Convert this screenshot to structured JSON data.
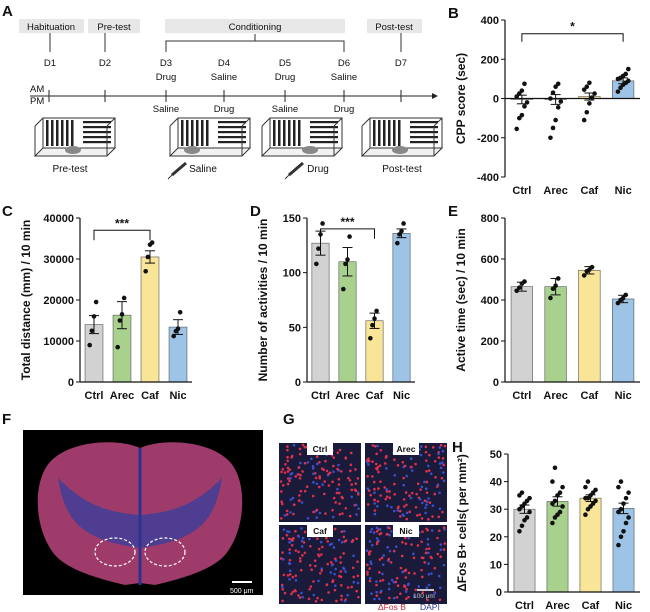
{
  "panels": {
    "A": "A",
    "B": "B",
    "C": "C",
    "D": "D",
    "E": "E",
    "F": "F",
    "G": "G",
    "H": "H"
  },
  "colors": {
    "Ctrl": "#d2d2d2",
    "Arec": "#a9d18e",
    "Caf": "#f8e598",
    "Nic": "#9dc3e6"
  },
  "schematic": {
    "phases": {
      "habituation": "Habituation",
      "pretest": "Pre-test",
      "conditioning": "Conditioning",
      "posttest": "Post-test"
    },
    "days": [
      "D1",
      "D2",
      "D3",
      "D4",
      "D5",
      "D6",
      "D7"
    ],
    "am_label": "AM",
    "pm_label": "PM",
    "am_treat": [
      "Drug",
      "Saline",
      "Drug",
      "Saline"
    ],
    "pm_treat": [
      "Saline",
      "Drug",
      "Saline",
      "Drug"
    ],
    "box_labels": {
      "pretest": "Pre-test",
      "saline": "Saline",
      "drug": "Drug",
      "posttest": "Post-test"
    }
  },
  "microscopy": {
    "F_scale": "500 μm",
    "G_labels": [
      "Ctrl",
      "Arec",
      "Caf",
      "Nic"
    ],
    "G_scale": "100 μm",
    "G_legend_fos": "ΔFos B",
    "G_legend_dapi": "DAPI"
  },
  "chart_data": [
    {
      "panel": "B",
      "type": "bar",
      "categories": [
        "Ctrl",
        "Arec",
        "Caf",
        "Nic"
      ],
      "values": [
        -5,
        -5,
        10,
        90
      ],
      "errors": [
        22,
        25,
        18,
        15
      ],
      "points": [
        [
          -155,
          -100,
          -85,
          -40,
          -20,
          10,
          25,
          40,
          75
        ],
        [
          -200,
          -150,
          -110,
          -45,
          -15,
          0,
          30,
          60,
          75
        ],
        [
          -110,
          -70,
          -25,
          5,
          25,
          45,
          60,
          80
        ],
        [
          35,
          55,
          70,
          80,
          90,
          100,
          105,
          115,
          125,
          150
        ]
      ],
      "ylabel": "CPP score (sec)",
      "ylim": [
        -400,
        400
      ],
      "yticks": [
        -400,
        -200,
        0,
        200,
        400
      ],
      "significance": {
        "from": "Ctrl",
        "to": "Nic",
        "label": "*"
      }
    },
    {
      "panel": "C",
      "type": "bar",
      "categories": [
        "Ctrl",
        "Arec",
        "Caf",
        "Nic"
      ],
      "values": [
        14000,
        16300,
        30500,
        13400
      ],
      "errors": [
        2200,
        3300,
        1500,
        1800
      ],
      "points": [
        [
          9000,
          12500,
          16000,
          19500
        ],
        [
          8500,
          15000,
          16500,
          20500
        ],
        [
          27000,
          30500,
          33500,
          34000
        ],
        [
          11200,
          12400,
          13000,
          17000
        ]
      ],
      "ylabel": "Total distance (mm) / 10 min",
      "ylim": [
        0,
        40000
      ],
      "yticks": [
        0,
        10000,
        20000,
        30000,
        40000
      ],
      "significance": {
        "from": "Ctrl",
        "to": "Caf",
        "label": "***"
      }
    },
    {
      "panel": "D",
      "type": "bar",
      "categories": [
        "Ctrl",
        "Arec",
        "Caf",
        "Nic"
      ],
      "values": [
        127,
        110,
        56,
        136
      ],
      "errors": [
        11,
        13,
        7,
        4
      ],
      "points": [
        [
          108,
          122,
          135,
          145
        ],
        [
          85,
          108,
          112,
          133
        ],
        [
          40,
          52,
          58,
          65
        ],
        [
          127,
          135,
          138,
          145
        ]
      ],
      "ylabel": "Number of activities / 10 min",
      "ylim": [
        0,
        150
      ],
      "yticks": [
        0,
        50,
        100,
        150
      ],
      "significance": {
        "from": "Ctrl",
        "to": "Caf",
        "label": "***"
      }
    },
    {
      "panel": "E",
      "type": "bar",
      "categories": [
        "Ctrl",
        "Arec",
        "Caf",
        "Nic"
      ],
      "values": [
        465,
        465,
        545,
        405
      ],
      "errors": [
        22,
        40,
        18,
        18
      ],
      "points": [
        [
          445,
          460,
          480,
          490
        ],
        [
          410,
          455,
          470,
          505
        ],
        [
          520,
          540,
          548,
          560
        ],
        [
          385,
          400,
          410,
          425
        ]
      ],
      "ylabel": "Active time (sec) / 10 min",
      "ylim": [
        0,
        800
      ],
      "yticks": [
        0,
        200,
        400,
        600,
        800
      ]
    },
    {
      "panel": "H",
      "type": "bar",
      "categories": [
        "Ctrl",
        "Arec",
        "Caf",
        "Nic"
      ],
      "values": [
        30,
        32.8,
        34,
        30.3
      ],
      "errors": [
        1.5,
        1.7,
        1.2,
        1.9
      ],
      "points": [
        [
          22,
          24,
          26,
          27,
          29,
          30,
          31,
          32,
          33,
          34,
          35,
          36
        ],
        [
          25,
          27,
          28,
          29,
          31,
          32,
          33,
          35,
          36,
          38,
          40,
          45
        ],
        [
          28,
          30,
          31,
          32,
          33,
          34,
          34,
          35,
          36,
          37,
          38,
          40
        ],
        [
          17,
          20,
          22,
          25,
          27,
          29,
          30,
          32,
          34,
          36,
          38,
          40
        ]
      ],
      "ylabel": "ΔFos B+ cells( per mm²)",
      "ylim": [
        0,
        50
      ],
      "yticks": [
        0,
        10,
        20,
        30,
        40,
        50
      ]
    }
  ]
}
